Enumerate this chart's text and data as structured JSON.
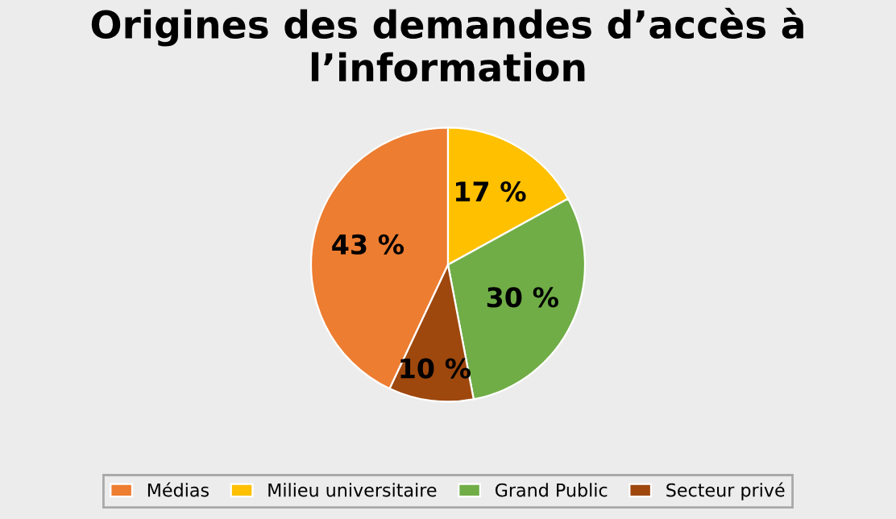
{
  "chart_data": {
    "type": "pie",
    "title": "Origines des demandes d’accès à l’information",
    "categories": [
      "Médias",
      "Milieu universitaire",
      "Grand Public",
      "Secteur privé"
    ],
    "values": [
      43,
      17,
      30,
      10
    ],
    "value_labels": [
      "43 %",
      "17 %",
      "30 %",
      "10 %"
    ],
    "colors": [
      "#ed7d31",
      "#ffc000",
      "#70ad47",
      "#9e480e"
    ],
    "legend": "bottom"
  }
}
